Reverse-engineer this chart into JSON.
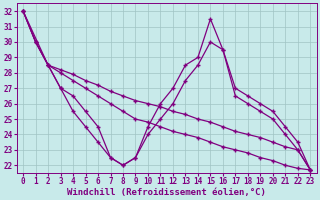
{
  "xlabel": "Windchill (Refroidissement éolien,°C)",
  "bg_color": "#c8eaea",
  "line_color": "#800080",
  "xlim": [
    -0.5,
    23.5
  ],
  "ylim": [
    21.5,
    32.5
  ],
  "yticks": [
    22,
    23,
    24,
    25,
    26,
    27,
    28,
    29,
    30,
    31,
    32
  ],
  "xticks": [
    0,
    1,
    2,
    3,
    4,
    5,
    6,
    7,
    8,
    9,
    10,
    11,
    12,
    13,
    14,
    15,
    16,
    17,
    18,
    19,
    20,
    21,
    22,
    23
  ],
  "line1_x": [
    0,
    1,
    2,
    3,
    4,
    5,
    6,
    7,
    8,
    9,
    10,
    11,
    12,
    13,
    14,
    15,
    16,
    17,
    18,
    19,
    20,
    21,
    22,
    23
  ],
  "line1_y": [
    32,
    30,
    28.5,
    28.0,
    27.5,
    27.0,
    26.5,
    26.0,
    25.5,
    25.0,
    24.8,
    24.5,
    24.2,
    24.0,
    23.8,
    23.5,
    23.2,
    23.0,
    22.8,
    22.5,
    22.3,
    22.0,
    21.8,
    21.7
  ],
  "line2_x": [
    0,
    1,
    2,
    3,
    4,
    5,
    6,
    7,
    8,
    9,
    10,
    11,
    12,
    13,
    14,
    15,
    16,
    17,
    18,
    19,
    20,
    21,
    22,
    23
  ],
  "line2_y": [
    32,
    30,
    28.5,
    28.2,
    27.9,
    27.5,
    27.2,
    26.8,
    26.5,
    26.2,
    26.0,
    25.8,
    25.5,
    25.3,
    25.0,
    24.8,
    24.5,
    24.2,
    24.0,
    23.8,
    23.5,
    23.2,
    23.0,
    21.7
  ],
  "line3_x": [
    0,
    1,
    2,
    3,
    4,
    5,
    6,
    7,
    8,
    9,
    10,
    11,
    12,
    13,
    14,
    15,
    16,
    17,
    18,
    19,
    20,
    21,
    22,
    23
  ],
  "line3_y": [
    32,
    30,
    28.5,
    27.0,
    25.5,
    24.5,
    23.5,
    22.5,
    22.0,
    22.5,
    24.5,
    26.0,
    27.0,
    28.5,
    29.0,
    31.5,
    29.5,
    26.5,
    26.0,
    25.5,
    25.0,
    24.0,
    23.0,
    21.7
  ],
  "line4_x": [
    0,
    2,
    3,
    4,
    5,
    6,
    7,
    8,
    9,
    10,
    11,
    12,
    13,
    14,
    15,
    16,
    17,
    18,
    19,
    20,
    21,
    22,
    23
  ],
  "line4_y": [
    32,
    28.5,
    27.0,
    26.5,
    25.5,
    24.5,
    22.5,
    22.0,
    22.5,
    24.0,
    25.0,
    26.0,
    27.5,
    28.5,
    30.0,
    29.5,
    27.0,
    26.5,
    26.0,
    25.5,
    24.5,
    23.5,
    21.7
  ],
  "xlabel_fontsize": 6.5,
  "tick_fontsize": 5.5,
  "grid_color": "#a0c4c4"
}
